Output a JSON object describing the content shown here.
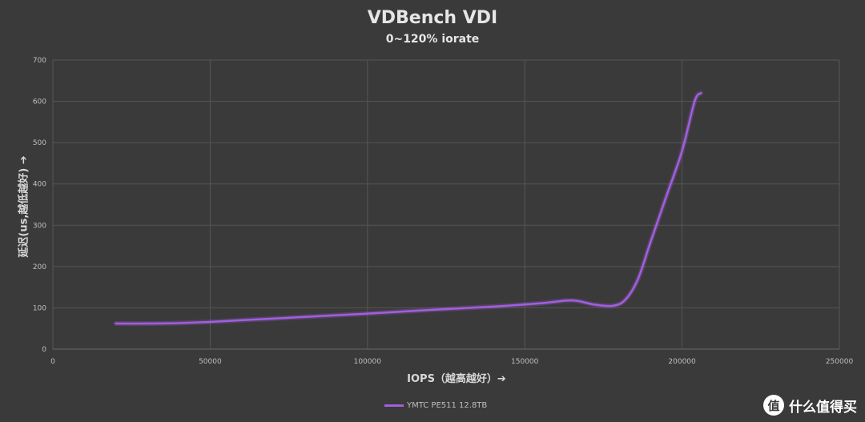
{
  "chart_data": {
    "type": "line",
    "title": "VDBench VDI",
    "subtitle": "0~120% iorate",
    "xlabel": "IOPS（越高越好）➔",
    "ylabel": "延迟(us,越低越好) ➔",
    "xlim": [
      0,
      250000
    ],
    "ylim": [
      0,
      700
    ],
    "xticks": [
      0,
      50000,
      100000,
      150000,
      200000,
      250000
    ],
    "yticks": [
      0,
      100,
      200,
      300,
      400,
      500,
      600,
      700
    ],
    "grid": true,
    "legend_position": "bottom",
    "series": [
      {
        "name": "YMTC PE511 12.8TB",
        "color": "#a25ee0",
        "x": [
          20000,
          30000,
          40000,
          50000,
          60000,
          80000,
          100000,
          120000,
          140000,
          155000,
          165000,
          172000,
          178000,
          182000,
          186000,
          190000,
          195000,
          200000,
          204000,
          206000
        ],
        "y": [
          62,
          62,
          63,
          66,
          70,
          78,
          86,
          95,
          103,
          111,
          118,
          108,
          105,
          120,
          170,
          260,
          370,
          480,
          600,
          620
        ]
      }
    ]
  },
  "watermark": {
    "logo_text": "值",
    "text": "什么值得买"
  }
}
